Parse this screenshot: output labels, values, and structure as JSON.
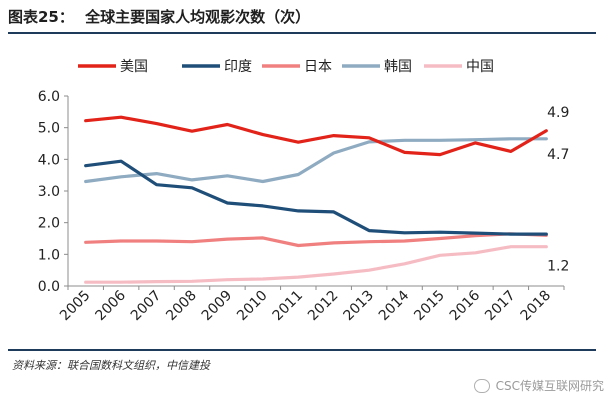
{
  "header": {
    "fig_label": "图表25：",
    "title": "全球主要国家人均观影次数（次）"
  },
  "footer": {
    "source": "资料来源：联合国数科文组织，中信建投",
    "watermark": "CSC传媒互联网研究"
  },
  "chart_data": {
    "type": "line",
    "title": "全球主要国家人均观影次数（次）",
    "categories": [
      "2005",
      "2006",
      "2007",
      "2008",
      "2009",
      "2010",
      "2011",
      "2012",
      "2013",
      "2014",
      "2015",
      "2016",
      "2017",
      "2018"
    ],
    "ylim": [
      0,
      6
    ],
    "yticks": [
      "0.0",
      "1.0",
      "2.0",
      "3.0",
      "4.0",
      "5.0",
      "6.0"
    ],
    "grid": false,
    "legend_position": "top",
    "series": [
      {
        "name": "美国",
        "color": "#e2231a",
        "values": [
          5.22,
          5.33,
          5.13,
          4.89,
          5.1,
          4.78,
          4.54,
          4.75,
          4.68,
          4.22,
          4.15,
          4.52,
          4.25,
          4.9
        ]
      },
      {
        "name": "印度",
        "color": "#1f4e79",
        "values": [
          3.8,
          3.94,
          3.2,
          3.1,
          2.62,
          2.53,
          2.37,
          2.34,
          1.75,
          1.68,
          1.7,
          1.67,
          1.64,
          1.64
        ]
      },
      {
        "name": "日本",
        "color": "#f08080",
        "values": [
          1.38,
          1.42,
          1.42,
          1.4,
          1.48,
          1.52,
          1.28,
          1.36,
          1.4,
          1.42,
          1.5,
          1.59,
          1.65,
          1.6
        ]
      },
      {
        "name": "韩国",
        "color": "#8fabc1",
        "values": [
          3.3,
          3.45,
          3.55,
          3.35,
          3.48,
          3.3,
          3.52,
          4.2,
          4.55,
          4.6,
          4.6,
          4.62,
          4.65,
          4.65
        ]
      },
      {
        "name": "中国",
        "color": "#f6bcc4",
        "values": [
          0.12,
          0.12,
          0.14,
          0.15,
          0.2,
          0.22,
          0.28,
          0.38,
          0.5,
          0.7,
          0.97,
          1.05,
          1.24,
          1.24
        ]
      }
    ],
    "annotations": [
      {
        "series": "美国",
        "label": "4.9"
      },
      {
        "series": "韩国",
        "label": "4.7"
      },
      {
        "series": "中国",
        "label": "1.2"
      }
    ]
  }
}
